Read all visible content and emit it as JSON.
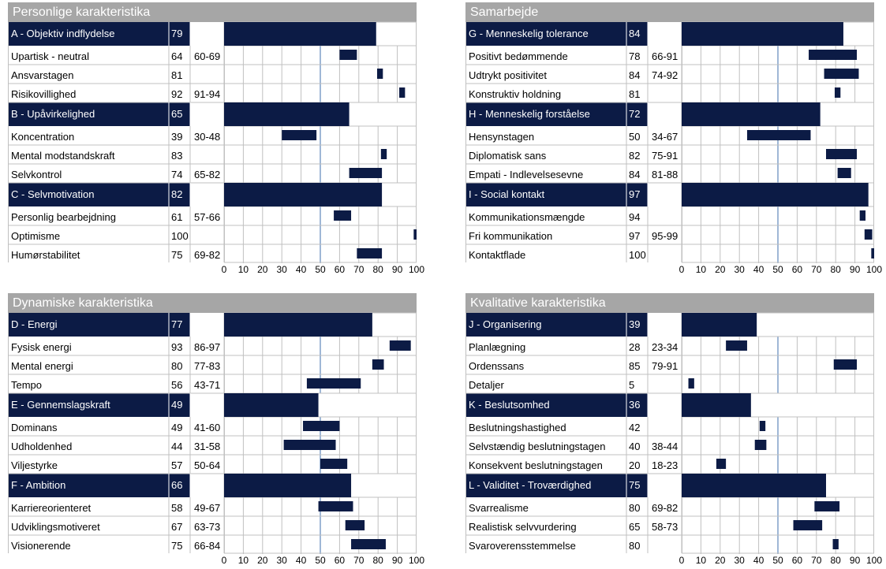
{
  "colors": {
    "header_bg": "#0c1b45",
    "bar": "#0c1b45",
    "title_bg": "#a6a6a6",
    "grid": "#c0c0c0",
    "midline": "#7f9fc8"
  },
  "axis_ticks": [
    "0",
    "10",
    "20",
    "30",
    "40",
    "50",
    "60",
    "70",
    "80",
    "90",
    "100"
  ],
  "panels": [
    {
      "title": "Personlige karakteristika",
      "groups": [
        {
          "name": "A - Objektiv indflydelse",
          "score": "79",
          "items": [
            {
              "name": "Upartisk - neutral",
              "score": "64",
              "range": "60-69"
            },
            {
              "name": "Ansvarstagen",
              "score": "81",
              "range": ""
            },
            {
              "name": "Risikovillighed",
              "score": "92",
              "range": "91-94"
            }
          ]
        },
        {
          "name": "B - Upåvirkelighed",
          "score": "65",
          "items": [
            {
              "name": "Koncentration",
              "score": "39",
              "range": "30-48"
            },
            {
              "name": "Mental modstandskraft",
              "score": "83",
              "range": ""
            },
            {
              "name": "Selvkontrol",
              "score": "74",
              "range": "65-82"
            }
          ]
        },
        {
          "name": "C - Selvmotivation",
          "score": "82",
          "items": [
            {
              "name": "Personlig bearbejdning",
              "score": "61",
              "range": "57-66"
            },
            {
              "name": "Optimisme",
              "score": "100",
              "range": ""
            },
            {
              "name": "Humørstabilitet",
              "score": "75",
              "range": "69-82"
            }
          ]
        }
      ]
    },
    {
      "title": "Samarbejde",
      "groups": [
        {
          "name": "G - Menneskelig tolerance",
          "score": "84",
          "items": [
            {
              "name": "Positivt bedømmende",
              "score": "78",
              "range": "66-91"
            },
            {
              "name": "Udtrykt positivitet",
              "score": "84",
              "range": "74-92"
            },
            {
              "name": "Konstruktiv holdning",
              "score": "81",
              "range": ""
            }
          ]
        },
        {
          "name": "H - Menneskelig forståelse",
          "score": "72",
          "items": [
            {
              "name": "Hensynstagen",
              "score": "50",
              "range": "34-67"
            },
            {
              "name": "Diplomatisk sans",
              "score": "82",
              "range": "75-91"
            },
            {
              "name": "Empati - Indlevelsesevne",
              "score": "84",
              "range": "81-88"
            }
          ]
        },
        {
          "name": "I - Social kontakt",
          "score": "97",
          "items": [
            {
              "name": "Kommunikationsmængde",
              "score": "94",
              "range": ""
            },
            {
              "name": "Fri kommunikation",
              "score": "97",
              "range": "95-99"
            },
            {
              "name": "Kontaktflade",
              "score": "100",
              "range": ""
            }
          ]
        }
      ]
    },
    {
      "title": "Dynamiske karakteristika",
      "groups": [
        {
          "name": "D - Energi",
          "score": "77",
          "items": [
            {
              "name": "Fysisk energi",
              "score": "93",
              "range": "86-97"
            },
            {
              "name": "Mental energi",
              "score": "80",
              "range": "77-83"
            },
            {
              "name": "Tempo",
              "score": "56",
              "range": "43-71"
            }
          ]
        },
        {
          "name": "E - Gennemslagskraft",
          "score": "49",
          "items": [
            {
              "name": "Dominans",
              "score": "49",
              "range": "41-60"
            },
            {
              "name": "Udholdenhed",
              "score": "44",
              "range": "31-58"
            },
            {
              "name": "Viljestyrke",
              "score": "57",
              "range": "50-64"
            }
          ]
        },
        {
          "name": "F - Ambition",
          "score": "66",
          "items": [
            {
              "name": "Karriereorienteret",
              "score": "58",
              "range": "49-67"
            },
            {
              "name": "Udviklingsmotiveret",
              "score": "67",
              "range": "63-73"
            },
            {
              "name": "Visionerende",
              "score": "75",
              "range": "66-84"
            }
          ]
        }
      ]
    },
    {
      "title": "Kvalitative karakteristika",
      "groups": [
        {
          "name": "J - Organisering",
          "score": "39",
          "items": [
            {
              "name": "Planlægning",
              "score": "28",
              "range": "23-34"
            },
            {
              "name": "Ordenssans",
              "score": "85",
              "range": "79-91"
            },
            {
              "name": "Detaljer",
              "score": "5",
              "range": ""
            }
          ]
        },
        {
          "name": "K - Beslutsomhed",
          "score": "36",
          "items": [
            {
              "name": "Beslutningshastighed",
              "score": "42",
              "range": ""
            },
            {
              "name": "Selvstændig beslutningstagen",
              "score": "40",
              "range": "38-44"
            },
            {
              "name": "Konsekvent beslutningstagen",
              "score": "20",
              "range": "18-23"
            }
          ]
        },
        {
          "name": "L - Validitet - Troværdighed",
          "score": "75",
          "items": [
            {
              "name": "Svarrealisme",
              "score": "80",
              "range": "69-82"
            },
            {
              "name": "Realistisk selvvurdering",
              "score": "65",
              "range": "58-73"
            },
            {
              "name": "Svaroverensstemmelse",
              "score": "80",
              "range": ""
            }
          ]
        }
      ]
    }
  ],
  "chart_data": {
    "type": "bar",
    "orientation": "horizontal",
    "xlim": [
      0,
      100
    ],
    "reference_line": 50,
    "panels": [
      {
        "title": "Personlige karakteristika",
        "rows": [
          {
            "label": "A - Objektiv indflydelse",
            "value": 79,
            "group": true
          },
          {
            "label": "Upartisk - neutral",
            "value": 64,
            "range": [
              60,
              69
            ]
          },
          {
            "label": "Ansvarstagen",
            "value": 81
          },
          {
            "label": "Risikovillighed",
            "value": 92,
            "range": [
              91,
              94
            ]
          },
          {
            "label": "B - Upåvirkelighed",
            "value": 65,
            "group": true
          },
          {
            "label": "Koncentration",
            "value": 39,
            "range": [
              30,
              48
            ]
          },
          {
            "label": "Mental modstandskraft",
            "value": 83
          },
          {
            "label": "Selvkontrol",
            "value": 74,
            "range": [
              65,
              82
            ]
          },
          {
            "label": "C - Selvmotivation",
            "value": 82,
            "group": true
          },
          {
            "label": "Personlig bearbejdning",
            "value": 61,
            "range": [
              57,
              66
            ]
          },
          {
            "label": "Optimisme",
            "value": 100
          },
          {
            "label": "Humørstabilitet",
            "value": 75,
            "range": [
              69,
              82
            ]
          }
        ]
      },
      {
        "title": "Samarbejde",
        "rows": [
          {
            "label": "G - Menneskelig tolerance",
            "value": 84,
            "group": true
          },
          {
            "label": "Positivt bedømmende",
            "value": 78,
            "range": [
              66,
              91
            ]
          },
          {
            "label": "Udtrykt positivitet",
            "value": 84,
            "range": [
              74,
              92
            ]
          },
          {
            "label": "Konstruktiv holdning",
            "value": 81
          },
          {
            "label": "H - Menneskelig forståelse",
            "value": 72,
            "group": true
          },
          {
            "label": "Hensynstagen",
            "value": 50,
            "range": [
              34,
              67
            ]
          },
          {
            "label": "Diplomatisk sans",
            "value": 82,
            "range": [
              75,
              91
            ]
          },
          {
            "label": "Empati - Indlevelsesevne",
            "value": 84,
            "range": [
              81,
              88
            ]
          },
          {
            "label": "I - Social kontakt",
            "value": 97,
            "group": true
          },
          {
            "label": "Kommunikationsmængde",
            "value": 94
          },
          {
            "label": "Fri kommunikation",
            "value": 97,
            "range": [
              95,
              99
            ]
          },
          {
            "label": "Kontaktflade",
            "value": 100
          }
        ]
      },
      {
        "title": "Dynamiske karakteristika",
        "rows": [
          {
            "label": "D - Energi",
            "value": 77,
            "group": true
          },
          {
            "label": "Fysisk energi",
            "value": 93,
            "range": [
              86,
              97
            ]
          },
          {
            "label": "Mental energi",
            "value": 80,
            "range": [
              77,
              83
            ]
          },
          {
            "label": "Tempo",
            "value": 56,
            "range": [
              43,
              71
            ]
          },
          {
            "label": "E - Gennemslagskraft",
            "value": 49,
            "group": true
          },
          {
            "label": "Dominans",
            "value": 49,
            "range": [
              41,
              60
            ]
          },
          {
            "label": "Udholdenhed",
            "value": 44,
            "range": [
              31,
              58
            ]
          },
          {
            "label": "Viljestyrke",
            "value": 57,
            "range": [
              50,
              64
            ]
          },
          {
            "label": "F - Ambition",
            "value": 66,
            "group": true
          },
          {
            "label": "Karriereorienteret",
            "value": 58,
            "range": [
              49,
              67
            ]
          },
          {
            "label": "Udviklingsmotiveret",
            "value": 67,
            "range": [
              63,
              73
            ]
          },
          {
            "label": "Visionerende",
            "value": 75,
            "range": [
              66,
              84
            ]
          }
        ]
      },
      {
        "title": "Kvalitative karakteristika",
        "rows": [
          {
            "label": "J - Organisering",
            "value": 39,
            "group": true
          },
          {
            "label": "Planlægning",
            "value": 28,
            "range": [
              23,
              34
            ]
          },
          {
            "label": "Ordenssans",
            "value": 85,
            "range": [
              79,
              91
            ]
          },
          {
            "label": "Detaljer",
            "value": 5
          },
          {
            "label": "K - Beslutsomhed",
            "value": 36,
            "group": true
          },
          {
            "label": "Beslutningshastighed",
            "value": 42
          },
          {
            "label": "Selvstændig beslutningstagen",
            "value": 40,
            "range": [
              38,
              44
            ]
          },
          {
            "label": "Konsekvent beslutningstagen",
            "value": 20,
            "range": [
              18,
              23
            ]
          },
          {
            "label": "L - Validitet - Troværdighed",
            "value": 75,
            "group": true
          },
          {
            "label": "Svarrealisme",
            "value": 80,
            "range": [
              69,
              82
            ]
          },
          {
            "label": "Realistisk selvvurdering",
            "value": 65,
            "range": [
              58,
              73
            ]
          },
          {
            "label": "Svaroverensstemmelse",
            "value": 80
          }
        ]
      }
    ]
  }
}
